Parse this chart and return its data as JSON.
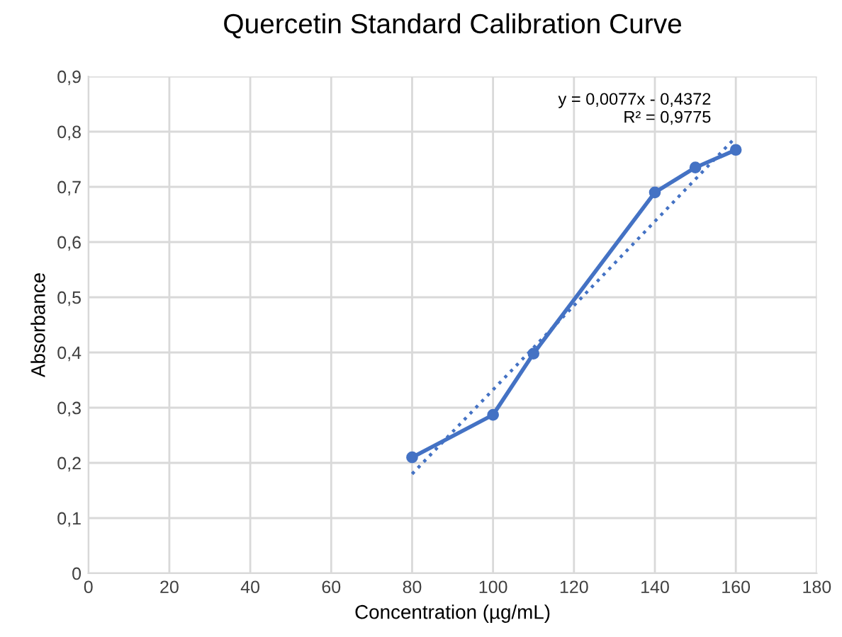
{
  "chart_data": {
    "type": "line",
    "title": "Quercetin Standard Calibration Curve",
    "xlabel": "Concentration (µg/mL)",
    "ylabel": "Absorbance",
    "xlim": [
      0,
      180
    ],
    "xticks": [
      0,
      20,
      40,
      60,
      80,
      100,
      120,
      140,
      160,
      180
    ],
    "ylim": [
      0,
      0.9
    ],
    "yticks": [
      0,
      {
        "value": 0.1,
        "label": "0,1"
      },
      {
        "value": 0.2,
        "label": "0,2"
      },
      {
        "value": 0.3,
        "label": "0,3"
      },
      {
        "value": 0.4,
        "label": "0,4"
      },
      {
        "value": 0.5,
        "label": "0,5"
      },
      {
        "value": 0.6,
        "label": "0,6"
      },
      {
        "value": 0.7,
        "label": "0,7"
      },
      {
        "value": 0.8,
        "label": "0,8"
      },
      {
        "value": 0.9,
        "label": "0,9"
      }
    ],
    "grid": true,
    "legend": false,
    "series": [
      {
        "color": "#4472c4",
        "marker": "circle",
        "line_style": "solid",
        "x": [
          80,
          100,
          110,
          140,
          150,
          160
        ],
        "values": [
          0.21,
          0.287,
          0.398,
          0.69,
          0.735,
          0.767
        ]
      },
      {
        "type": "line",
        "color": "#4472c4",
        "marker": "none",
        "line_style": "dotted",
        "x": [
          80,
          160
        ],
        "values": [
          0.18,
          0.79
        ]
      }
    ],
    "annotations": [
      "y = 0,0077x - 0,4372\nR² = 0,9775"
    ]
  }
}
